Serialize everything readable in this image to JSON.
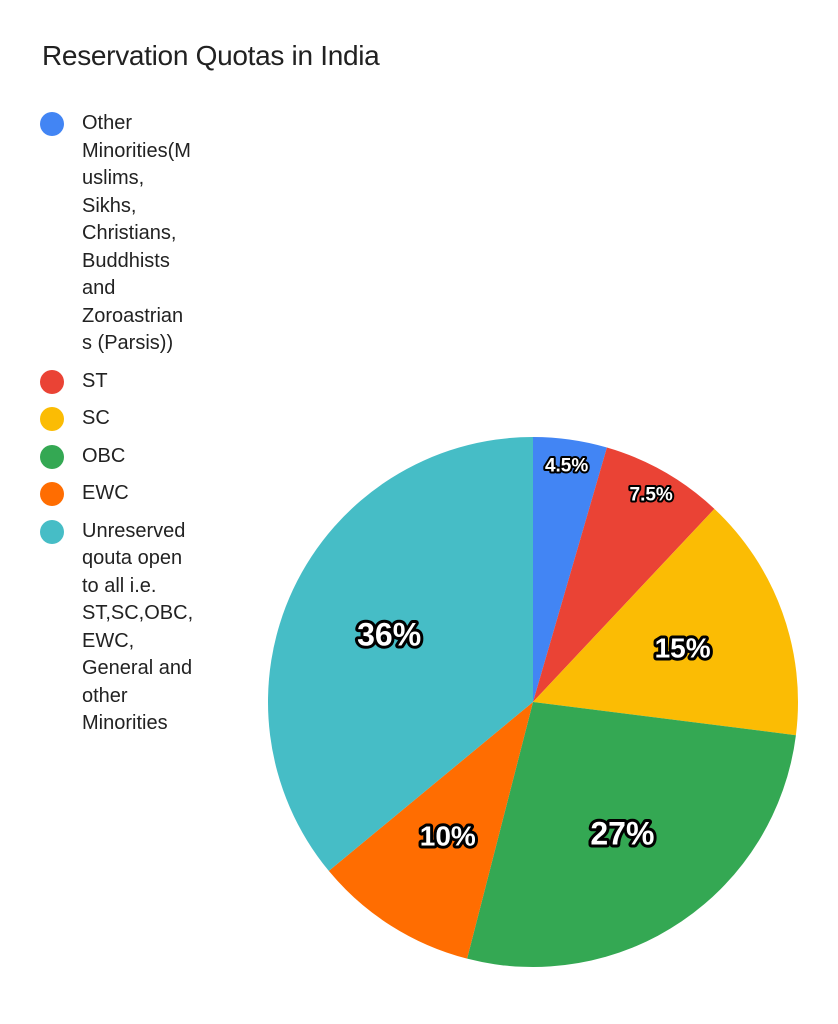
{
  "chart_data": {
    "type": "pie",
    "title": "Reservation Quotas in India",
    "legend_position": "left",
    "slices": [
      {
        "label": "Other\nMinorities(M\nuslims,\nSikhs,\nChristians,\nBuddhists\nand\nZoroastrian\ns (Parsis))",
        "value": 4.5,
        "display": "4.5%",
        "color": "#4285F4"
      },
      {
        "label": "ST",
        "value": 7.5,
        "display": "7.5%",
        "color": "#EA4335"
      },
      {
        "label": "SC",
        "value": 15,
        "display": "15%",
        "color": "#FBBC04"
      },
      {
        "label": "OBC",
        "value": 27,
        "display": "27%",
        "color": "#34A853"
      },
      {
        "label": "EWC",
        "value": 10,
        "display": "10%",
        "color": "#FF6D01"
      },
      {
        "label": "Unreserved\nqouta open\nto all i.e.\nST,SC,OBC,\nEWC,\nGeneral and\nother\nMinorities",
        "value": 36,
        "display": "36%",
        "color": "#46BDC6"
      }
    ]
  }
}
